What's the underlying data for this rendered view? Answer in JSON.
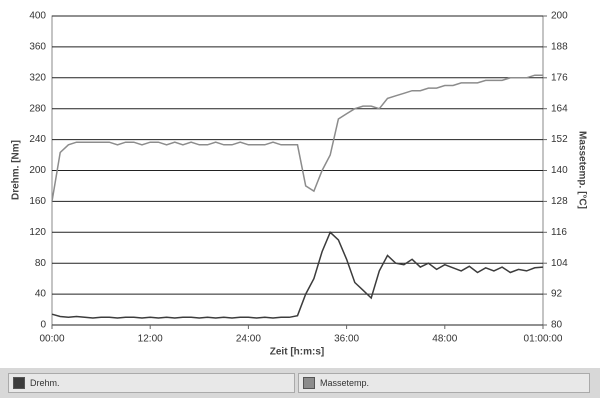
{
  "chart_data": {
    "type": "line",
    "x_label": "Zeit [h:m:s]",
    "y_label": "Drehm. [Nm]",
    "y2_label": "Massetemp. [°C]",
    "x": [
      0,
      1,
      2,
      3,
      4,
      5,
      6,
      7,
      8,
      9,
      10,
      11,
      12,
      13,
      14,
      15,
      16,
      17,
      18,
      19,
      20,
      21,
      22,
      23,
      24,
      25,
      26,
      27,
      28,
      29,
      30,
      31,
      32,
      33,
      34,
      35,
      36,
      37,
      38,
      39,
      40,
      41,
      42,
      43,
      44,
      45,
      46,
      47,
      48,
      49,
      50,
      51,
      52,
      53,
      54,
      55,
      56,
      57,
      58,
      59,
      60
    ],
    "series": [
      {
        "name": "Drehm.",
        "color": "#3c3c3c",
        "values": [
          14,
          11,
          10,
          11,
          10,
          9,
          10,
          10,
          9,
          10,
          10,
          9,
          10,
          9,
          10,
          9,
          10,
          10,
          9,
          10,
          9,
          10,
          9,
          10,
          10,
          9,
          10,
          9,
          10,
          10,
          12,
          40,
          60,
          95,
          120,
          110,
          85,
          55,
          45,
          35,
          70,
          90,
          80,
          78,
          85,
          75,
          80,
          72,
          78,
          74,
          70,
          76,
          68,
          74,
          70,
          75,
          68,
          72,
          70,
          74,
          75
        ]
      },
      {
        "name": "Massetemp.",
        "color": "#8c8c8c",
        "axis": "y2",
        "values": [
          128,
          147,
          150,
          151,
          151,
          151,
          151,
          151,
          150,
          151,
          151,
          150,
          151,
          151,
          150,
          151,
          150,
          151,
          150,
          150,
          151,
          150,
          150,
          151,
          150,
          150,
          150,
          151,
          150,
          150,
          150,
          134,
          132,
          140,
          146,
          160,
          162,
          164,
          165,
          165,
          164,
          168,
          169,
          170,
          171,
          171,
          172,
          172,
          173,
          173,
          174,
          174,
          174,
          175,
          175,
          175,
          176,
          176,
          176,
          177,
          177
        ]
      }
    ],
    "xlim": [
      0,
      60
    ],
    "xticks": [
      {
        "value": 0,
        "label": "00:00"
      },
      {
        "value": 12,
        "label": "12:00"
      },
      {
        "value": 24,
        "label": "24:00"
      },
      {
        "value": 36,
        "label": "36:00"
      },
      {
        "value": 48,
        "label": "48:00"
      },
      {
        "value": 60,
        "label": "01:00:00"
      }
    ],
    "ylim": [
      0,
      400
    ],
    "yticks": [
      0,
      40,
      80,
      120,
      160,
      200,
      240,
      280,
      320,
      360,
      400
    ],
    "y2lim": [
      80,
      200
    ],
    "y2ticks": [
      80,
      92,
      104,
      116,
      128,
      140,
      152,
      164,
      176,
      188,
      200
    ],
    "grid": true
  }
}
